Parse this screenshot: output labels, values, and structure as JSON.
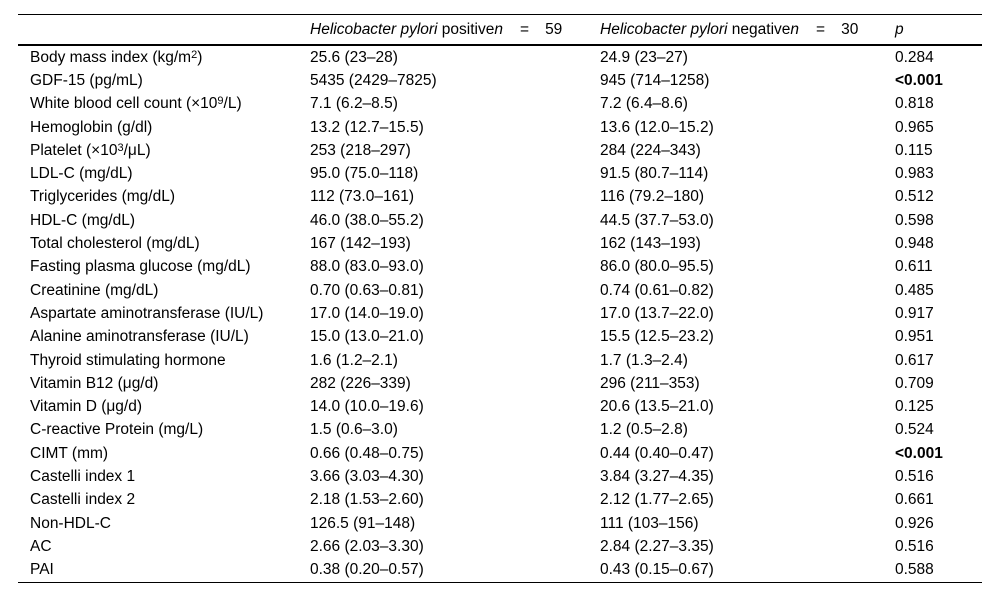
{
  "page": {
    "background_color": "#ffffff",
    "text_color": "#000000"
  },
  "table": {
    "header": {
      "positive": {
        "species": "Helicobacter pylori",
        "status": " positive",
        "n": "n",
        "eq": "=",
        "count": "59"
      },
      "negative": {
        "species": "Helicobacter pylori",
        "status": " negative",
        "n": "n",
        "eq": "=",
        "count": "30"
      },
      "p_label": "p"
    },
    "rows": [
      {
        "label": [
          {
            "t": "Body mass index (kg/m"
          },
          {
            "s": "2"
          },
          {
            "t": ")"
          }
        ],
        "positive": "25.6 (23–28)",
        "negative": "24.9 (23–27)",
        "p": "0.284",
        "p_bold": false
      },
      {
        "label": [
          {
            "t": "GDF-15 (pg/mL)"
          }
        ],
        "positive": "5435 (2429–7825)",
        "negative": "945 (714–1258)",
        "p": "<0.001",
        "p_bold": true
      },
      {
        "label": [
          {
            "t": "White blood cell count (×10"
          },
          {
            "s": "9"
          },
          {
            "t": "/L)"
          }
        ],
        "positive": "7.1 (6.2–8.5)",
        "negative": "7.2 (6.4–8.6)",
        "p": "0.818",
        "p_bold": false
      },
      {
        "label": [
          {
            "t": "Hemoglobin (g/dl)"
          }
        ],
        "positive": "13.2 (12.7–15.5)",
        "negative": "13.6 (12.0–15.2)",
        "p": "0.965",
        "p_bold": false
      },
      {
        "label": [
          {
            "t": "Platelet (×10"
          },
          {
            "s": "3"
          },
          {
            "t": "/μL)"
          }
        ],
        "positive": "253 (218–297)",
        "negative": "284 (224–343)",
        "p": "0.115",
        "p_bold": false
      },
      {
        "label": [
          {
            "t": "LDL-C (mg/dL)"
          }
        ],
        "positive": "95.0 (75.0–118)",
        "negative": "91.5 (80.7–114)",
        "p": "0.983",
        "p_bold": false
      },
      {
        "label": [
          {
            "t": "Triglycerides (mg/dL)"
          }
        ],
        "positive": "112 (73.0–161)",
        "negative": "116 (79.2–180)",
        "p": "0.512",
        "p_bold": false
      },
      {
        "label": [
          {
            "t": "HDL-C (mg/dL)"
          }
        ],
        "positive": "46.0 (38.0–55.2)",
        "negative": "44.5 (37.7–53.0)",
        "p": "0.598",
        "p_bold": false
      },
      {
        "label": [
          {
            "t": "Total cholesterol (mg/dL)"
          }
        ],
        "positive": "167 (142–193)",
        "negative": "162 (143–193)",
        "p": "0.948",
        "p_bold": false
      },
      {
        "label": [
          {
            "t": "Fasting plasma glucose (mg/dL)"
          }
        ],
        "positive": "88.0 (83.0–93.0)",
        "negative": "86.0 (80.0–95.5)",
        "p": "0.611",
        "p_bold": false
      },
      {
        "label": [
          {
            "t": "Creatinine (mg/dL)"
          }
        ],
        "positive": "0.70 (0.63–0.81)",
        "negative": "0.74 (0.61–0.82)",
        "p": "0.485",
        "p_bold": false
      },
      {
        "label": [
          {
            "t": "Aspartate aminotransferase (IU/L)"
          }
        ],
        "positive": "17.0 (14.0–19.0)",
        "negative": "17.0 (13.7–22.0)",
        "p": "0.917",
        "p_bold": false
      },
      {
        "label": [
          {
            "t": "Alanine aminotransferase (IU/L)"
          }
        ],
        "positive": "15.0 (13.0–21.0)",
        "negative": "15.5 (12.5–23.2)",
        "p": "0.951",
        "p_bold": false
      },
      {
        "label": [
          {
            "t": "Thyroid stimulating hormone"
          }
        ],
        "positive": "1.6 (1.2–2.1)",
        "negative": "1.7 (1.3–2.4)",
        "p": "0.617",
        "p_bold": false
      },
      {
        "label": [
          {
            "t": "Vitamin B12 (μg/d)"
          }
        ],
        "positive": "282 (226–339)",
        "negative": "296 (211–353)",
        "p": "0.709",
        "p_bold": false
      },
      {
        "label": [
          {
            "t": "Vitamin D (μg/d)"
          }
        ],
        "positive": "14.0 (10.0–19.6)",
        "negative": "20.6 (13.5–21.0)",
        "p": "0.125",
        "p_bold": false
      },
      {
        "label": [
          {
            "t": "C-reactive Protein (mg/L)"
          }
        ],
        "positive": "1.5 (0.6–3.0)",
        "negative": "1.2 (0.5–2.8)",
        "p": "0.524",
        "p_bold": false
      },
      {
        "label": [
          {
            "t": "CIMT (mm)"
          }
        ],
        "positive": "0.66 (0.48–0.75)",
        "negative": "0.44 (0.40–0.47)",
        "p": "<0.001",
        "p_bold": true
      },
      {
        "label": [
          {
            "t": "Castelli index 1"
          }
        ],
        "positive": "3.66 (3.03–4.30)",
        "negative": "3.84 (3.27–4.35)",
        "p": "0.516",
        "p_bold": false
      },
      {
        "label": [
          {
            "t": "Castelli index 2"
          }
        ],
        "positive": "2.18 (1.53–2.60)",
        "negative": "2.12 (1.77–2.65)",
        "p": "0.661",
        "p_bold": false
      },
      {
        "label": [
          {
            "t": "Non-HDL-C"
          }
        ],
        "positive": "126.5 (91–148)",
        "negative": "111 (103–156)",
        "p": "0.926",
        "p_bold": false
      },
      {
        "label": [
          {
            "t": "AC"
          }
        ],
        "positive": "2.66 (2.03–3.30)",
        "negative": "2.84 (2.27–3.35)",
        "p": "0.516",
        "p_bold": false
      },
      {
        "label": [
          {
            "t": "PAI"
          }
        ],
        "positive": "0.38 (0.20–0.57)",
        "negative": "0.43 (0.15–0.67)",
        "p": "0.588",
        "p_bold": false
      }
    ]
  }
}
